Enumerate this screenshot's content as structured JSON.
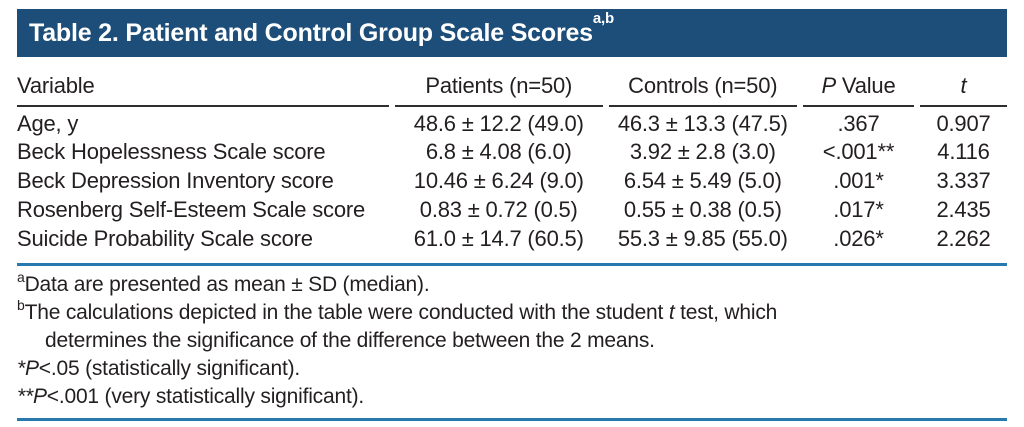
{
  "title": {
    "text": "Table 2. Patient and Control Group Scale Scores",
    "superscript": "a,b"
  },
  "header": {
    "variable": "Variable",
    "patients": "Patients (n=50)",
    "controls": "Controls (n=50)",
    "p_value": {
      "italic": "P",
      "rest": " Value"
    },
    "t": "t"
  },
  "rows": [
    {
      "variable": "Age, y",
      "patients": "48.6 ± 12.2 (49.0)",
      "controls": "46.3 ± 13.3 (47.5)",
      "p": ".367",
      "t": "0.907"
    },
    {
      "variable": "Beck Hopelessness Scale score",
      "patients": "6.8 ± 4.08 (6.0)",
      "controls": "3.92 ± 2.8 (3.0)",
      "p": "<.001**",
      "t": "4.116"
    },
    {
      "variable": "Beck Depression Inventory score",
      "patients": "10.46 ± 6.24 (9.0)",
      "controls": "6.54 ± 5.49 (5.0)",
      "p": ".001*",
      "t": "3.337"
    },
    {
      "variable": "Rosenberg Self-Esteem Scale score",
      "patients": "0.83 ± 0.72 (0.5)",
      "controls": "0.55 ± 0.38 (0.5)",
      "p": ".017*",
      "t": "2.435"
    },
    {
      "variable": "Suicide Probability Scale score",
      "patients": "61.0 ± 14.7 (60.5)",
      "controls": "55.3 ± 9.85 (55.0)",
      "p": ".026*",
      "t": "2.262"
    }
  ],
  "footnotes": [
    {
      "marker": "a",
      "sup": true,
      "segments": [
        {
          "text": "Data are presented as mean ± SD (median)."
        }
      ]
    },
    {
      "marker": "b",
      "sup": true,
      "segments": [
        {
          "text": "The calculations depicted in the table were conducted with the student "
        },
        {
          "text": "t",
          "italic": true
        },
        {
          "text": " test, which"
        },
        {
          "break": true
        },
        {
          "text": "determines the significance of the difference between the 2 means."
        }
      ]
    },
    {
      "marker": "*",
      "sup": false,
      "segments": [
        {
          "text": "P",
          "italic": true
        },
        {
          "text": "<.05 (statistically significant)."
        }
      ]
    },
    {
      "marker": "**",
      "sup": false,
      "segments": [
        {
          "text": "P",
          "italic": true
        },
        {
          "text": "<.001 (very statistically significant)."
        }
      ]
    }
  ],
  "colors": {
    "title_bar": "#1d4e79",
    "blue_rule": "#2879ae",
    "header_rule": "#2e2e2e",
    "text": "#231f20"
  }
}
